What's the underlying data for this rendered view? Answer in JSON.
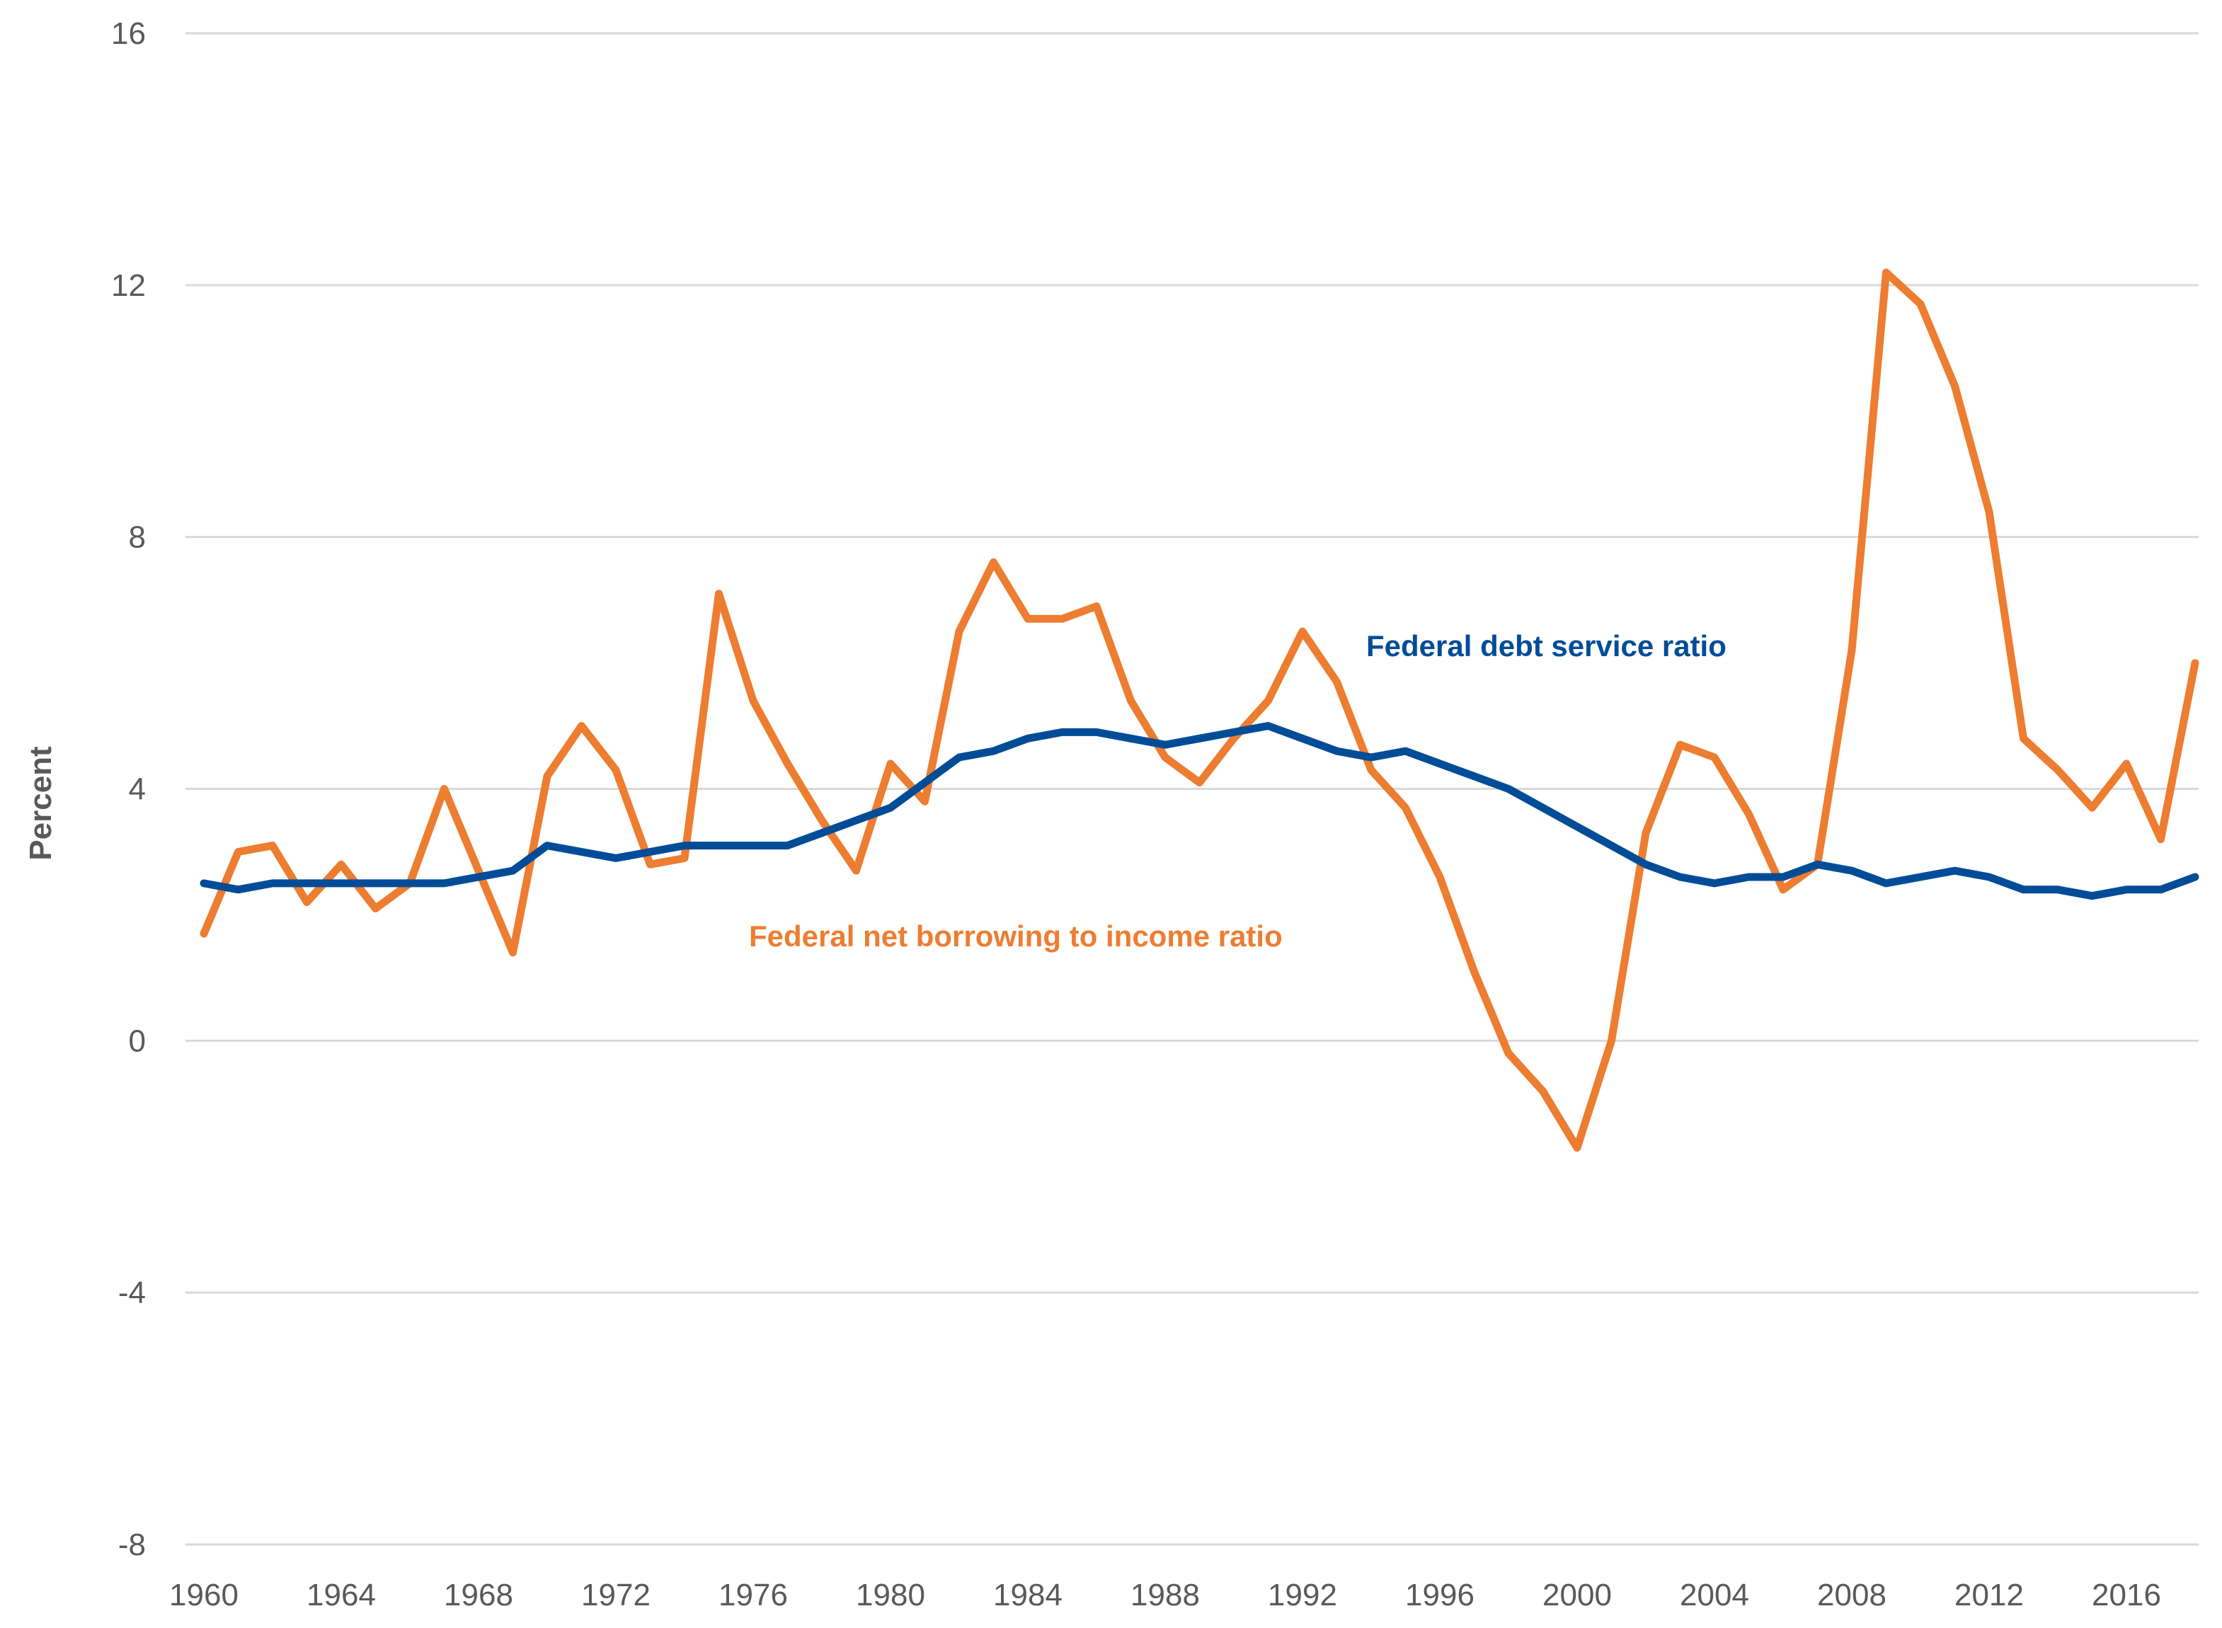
{
  "chart_data": {
    "type": "line",
    "ylabel": "Percent",
    "ylim": [
      -8,
      16
    ],
    "yticks": [
      16,
      12,
      8,
      4,
      0,
      -4,
      -8
    ],
    "xlim": [
      1960,
      2018
    ],
    "xticks": [
      1960,
      1964,
      1968,
      1972,
      1976,
      1980,
      1984,
      1988,
      1992,
      1996,
      2000,
      2004,
      2008,
      2012,
      2016
    ],
    "grid": true,
    "legend": "inline labels",
    "x": [
      1960,
      1961,
      1962,
      1963,
      1964,
      1965,
      1966,
      1967,
      1968,
      1969,
      1970,
      1971,
      1972,
      1973,
      1974,
      1975,
      1976,
      1977,
      1978,
      1979,
      1980,
      1981,
      1982,
      1983,
      1984,
      1985,
      1986,
      1987,
      1988,
      1989,
      1990,
      1991,
      1992,
      1993,
      1994,
      1995,
      1996,
      1997,
      1998,
      1999,
      2000,
      2001,
      2002,
      2003,
      2004,
      2005,
      2006,
      2007,
      2008,
      2009,
      2010,
      2011,
      2012,
      2013,
      2014,
      2015,
      2016,
      2017,
      2018
    ],
    "series": [
      {
        "name": "Federal net borrowing to income ratio",
        "color": "#ed7d31",
        "values": [
          1.7,
          3.0,
          3.1,
          2.2,
          2.8,
          2.1,
          2.5,
          4.0,
          2.7,
          1.4,
          4.2,
          5.0,
          4.3,
          2.8,
          2.9,
          7.1,
          5.4,
          4.4,
          3.5,
          2.7,
          4.4,
          3.8,
          6.5,
          7.6,
          6.7,
          6.7,
          6.9,
          5.4,
          4.5,
          4.1,
          4.8,
          5.4,
          6.5,
          5.7,
          4.3,
          3.7,
          2.6,
          1.1,
          -0.2,
          -0.8,
          -1.7,
          0.0,
          3.3,
          4.7,
          4.5,
          3.6,
          2.4,
          2.8,
          6.2,
          12.2,
          11.7,
          10.4,
          8.4,
          4.8,
          4.3,
          3.7,
          4.4,
          3.2,
          6.0
        ]
      },
      {
        "name": "Federal debt service ratio",
        "color": "#004c97",
        "values": [
          2.5,
          2.4,
          2.5,
          2.5,
          2.5,
          2.5,
          2.5,
          2.5,
          2.6,
          2.7,
          3.1,
          3.0,
          2.9,
          3.0,
          3.1,
          3.1,
          3.1,
          3.1,
          3.3,
          3.5,
          3.7,
          4.1,
          4.5,
          4.6,
          4.8,
          4.9,
          4.9,
          4.8,
          4.7,
          4.8,
          4.9,
          5.0,
          4.8,
          4.6,
          4.5,
          4.6,
          4.4,
          4.2,
          4.0,
          3.7,
          3.4,
          3.1,
          2.8,
          2.6,
          2.5,
          2.6,
          2.6,
          2.8,
          2.7,
          2.5,
          2.6,
          2.7,
          2.6,
          2.4,
          2.4,
          2.3,
          2.4,
          2.4,
          2.6
        ]
      }
    ]
  }
}
